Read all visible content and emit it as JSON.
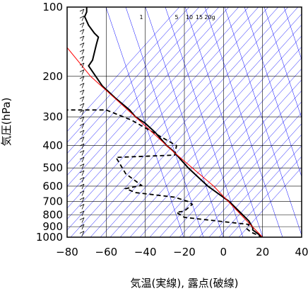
{
  "chart_data": {
    "type": "line",
    "xlabel": "気温(実線), 露点(破線)",
    "ylabel": "気圧(hPa)",
    "xlim": [
      -80,
      40
    ],
    "ylim": [
      1000,
      100
    ],
    "y_scale": "log",
    "grid": true,
    "x_ticks": [
      "−80",
      "−60",
      "−40",
      "−20",
      "0",
      "20",
      "40"
    ],
    "y_ticks": [
      "100",
      "200",
      "300",
      "400",
      "500",
      "600",
      "700",
      "800",
      "900",
      "1000"
    ],
    "mixing_ratio_labels": [
      "1",
      "5",
      "10",
      "15",
      "20g"
    ],
    "colors": {
      "temperature": "#000000",
      "dewpoint": "#000000",
      "dry_adiabat": "#0000ff",
      "mixing_line": "#0000ff",
      "parcel": "#ff0000",
      "wind_barbs": "#000000"
    },
    "series": [
      {
        "style": "solid",
        "points": [
          [
            20,
            1000
          ],
          [
            15,
            930
          ],
          [
            15,
            910
          ],
          [
            13,
            850
          ],
          [
            3,
            700
          ],
          [
            -8,
            600
          ],
          [
            -18,
            500
          ],
          [
            -26,
            420
          ],
          [
            -29,
            400
          ],
          [
            -35,
            350
          ],
          [
            -40,
            320
          ],
          [
            -45,
            300
          ],
          [
            -48,
            280
          ],
          [
            -55,
            250
          ],
          [
            -62,
            220
          ],
          [
            -69,
            180
          ],
          [
            -67,
            170
          ],
          [
            -65,
            145
          ],
          [
            -64,
            135
          ],
          [
            -66,
            130
          ],
          [
            -69,
            120
          ],
          [
            -71,
            110
          ],
          [
            -70,
            105
          ],
          [
            -70,
            100
          ]
        ]
      },
      {
        "style": "dashed",
        "points": [
          [
            20,
            1000
          ],
          [
            14,
            950
          ],
          [
            12,
            920
          ],
          [
            13,
            880
          ],
          [
            -20,
            820
          ],
          [
            -24,
            780
          ],
          [
            -20,
            770
          ],
          [
            -16,
            720
          ],
          [
            -18,
            700
          ],
          [
            -25,
            670
          ],
          [
            -45,
            640
          ],
          [
            -50,
            615
          ],
          [
            -42,
            595
          ],
          [
            -50,
            530
          ],
          [
            -55,
            450
          ],
          [
            -25,
            440
          ],
          [
            -24,
            400
          ],
          [
            -47,
            310
          ],
          [
            -60,
            280
          ],
          [
            -80,
            280
          ]
        ]
      },
      {
        "style": "parcel",
        "points": [
          [
            20,
            1000
          ],
          [
            12,
            850
          ],
          [
            -5,
            600
          ],
          [
            -25,
            430
          ],
          [
            -45,
            300
          ],
          [
            -68,
            200
          ],
          [
            -80,
            150
          ]
        ]
      }
    ]
  }
}
